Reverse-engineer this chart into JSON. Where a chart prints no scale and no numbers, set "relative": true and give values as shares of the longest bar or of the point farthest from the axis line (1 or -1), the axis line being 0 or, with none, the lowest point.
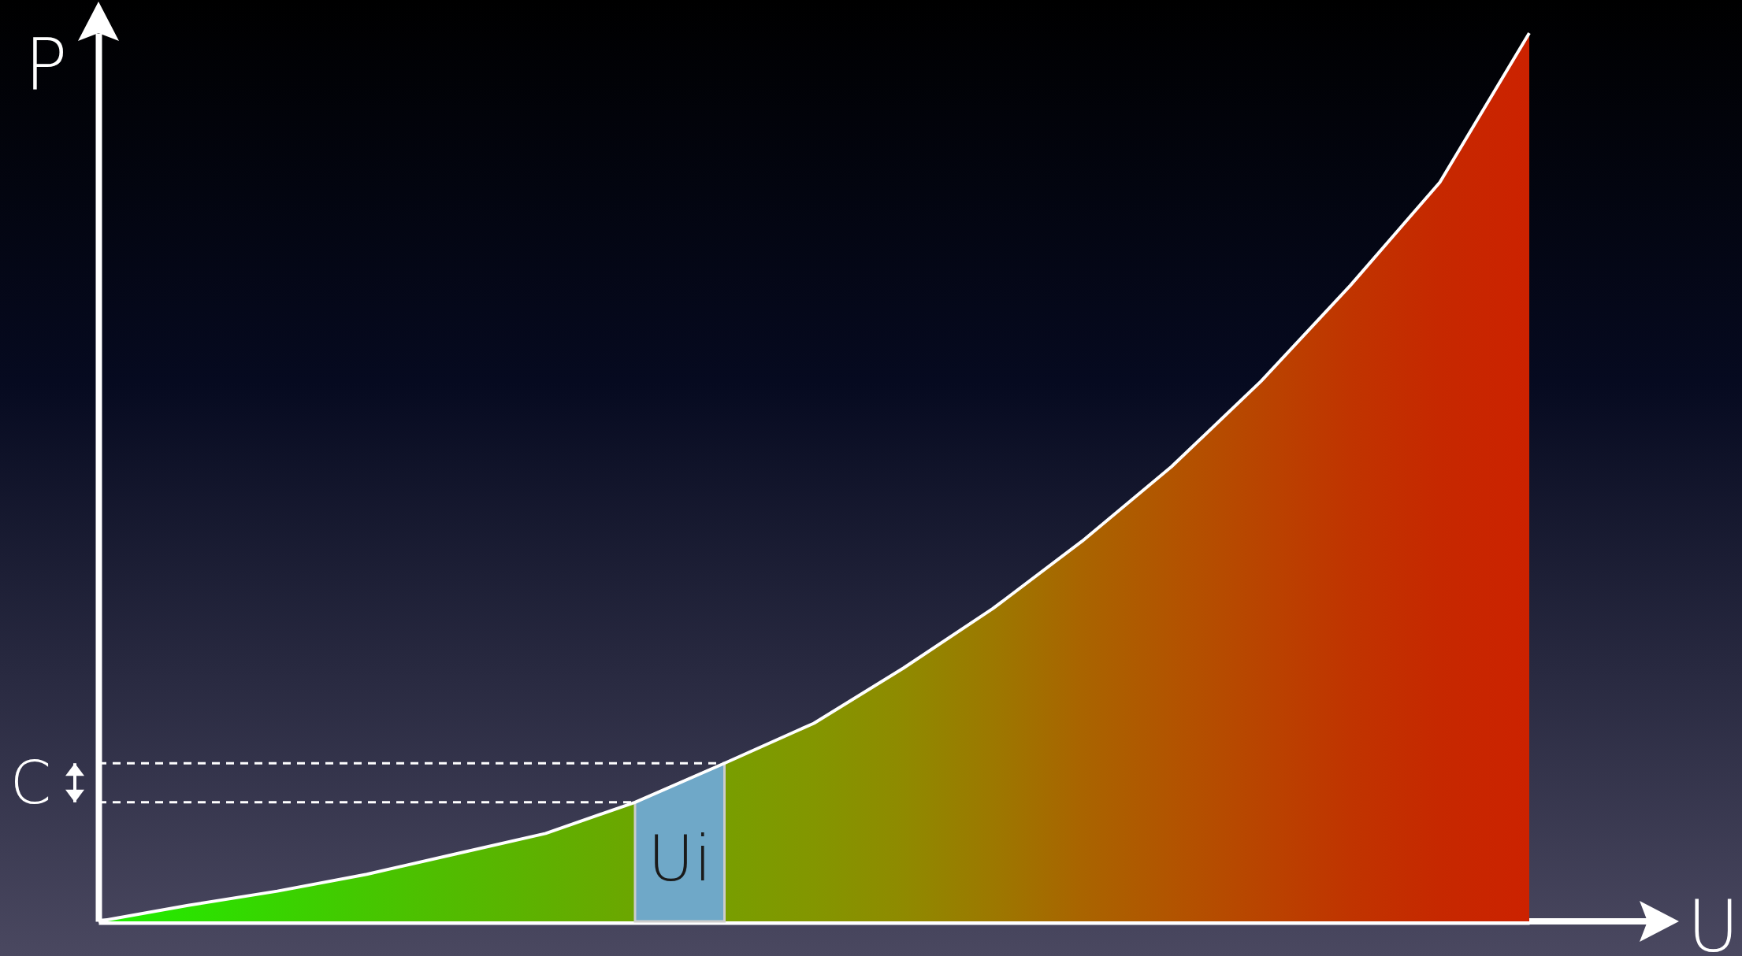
{
  "chart_data": {
    "type": "area",
    "relative": true,
    "xlabel": "U",
    "ylabel": "P",
    "categories": [
      null,
      null,
      null,
      null,
      null,
      null,
      null,
      null,
      null,
      null,
      null,
      null,
      null,
      null,
      null,
      null,
      null
    ],
    "series": [
      {
        "color": "#ffffff",
        "colors": [
          "#1ef000",
          "#2be200",
          "#38d400",
          "#45c700",
          "#52bb00",
          "#5fb000",
          "#6ca600",
          "#789e00",
          "#839600",
          "#8f8a00",
          "#9c7800",
          "#a96400",
          "#b25400",
          "#b94400",
          "#c03400",
          "#c62800",
          "#cc2200"
        ],
        "values": [
          0,
          0.018,
          0.034,
          0.053,
          0.076,
          0.099,
          0.134,
          0.178,
          0.223,
          0.285,
          0.352,
          0.428,
          0.512,
          0.608,
          0.716,
          0.832,
          1
        ]
      },
      {
        "name": "Ui",
        "color": "#6fa8c8",
        "values": [
          null,
          null,
          null,
          null,
          null,
          null,
          0.134,
          0.178,
          null,
          null,
          null,
          null,
          null,
          null,
          null,
          null,
          null
        ]
      }
    ],
    "ref_lines": [
      {
        "axis": "y",
        "value": 0.134,
        "line_style": "dashed"
      },
      {
        "axis": "y",
        "value": 0.178,
        "line_style": "dashed"
      }
    ],
    "annotations": [
      "C"
    ]
  }
}
